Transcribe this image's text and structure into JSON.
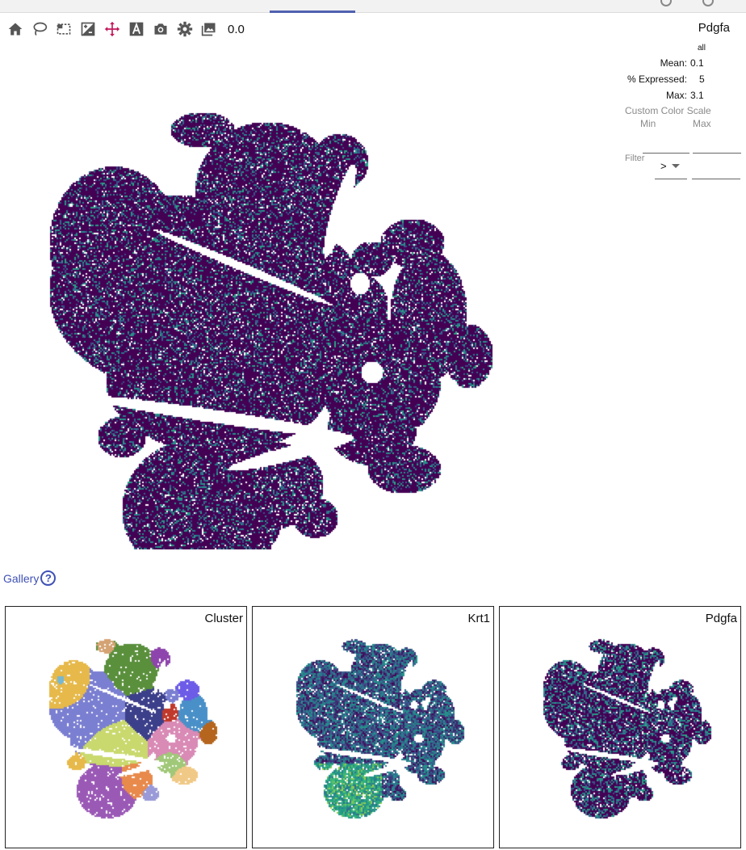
{
  "toolbar": {
    "tools": [
      {
        "name": "home-icon",
        "active": false
      },
      {
        "name": "lasso-icon",
        "active": false
      },
      {
        "name": "select-rectangle-icon",
        "active": false
      },
      {
        "name": "invert-selection-icon",
        "active": false
      },
      {
        "name": "pan-icon",
        "active": true
      },
      {
        "name": "text-label-icon",
        "active": false
      },
      {
        "name": "camera-icon",
        "active": false
      },
      {
        "name": "gear-icon",
        "active": false
      },
      {
        "name": "image-icon",
        "active": false
      }
    ],
    "readout": "0.0"
  },
  "info": {
    "gene": "Pdgfa",
    "subset": "all",
    "mean_label": "Mean:",
    "mean_value": "0.1",
    "expressed_label": "% Expressed:",
    "expressed_value": "5",
    "max_label": "Max:",
    "max_value": "3.1",
    "custom_color_scale": "Custom Color Scale",
    "min_label": "Min",
    "max_col_label": "Max",
    "filter_label": "Filter",
    "filter_operator": ">"
  },
  "gallery": {
    "title": "Gallery",
    "help": "?",
    "panels": [
      {
        "label": "Cluster",
        "mode": "cluster"
      },
      {
        "label": "Krt1",
        "mode": "krt1"
      },
      {
        "label": "Pdgfa",
        "mode": "pdgfa"
      }
    ]
  },
  "colors": {
    "accent": "#3f51b5",
    "pan_active": "#c2185b",
    "viridis_low": "#440154",
    "viridis_mid": "#31688e",
    "viridis_high": "#35b779"
  }
}
